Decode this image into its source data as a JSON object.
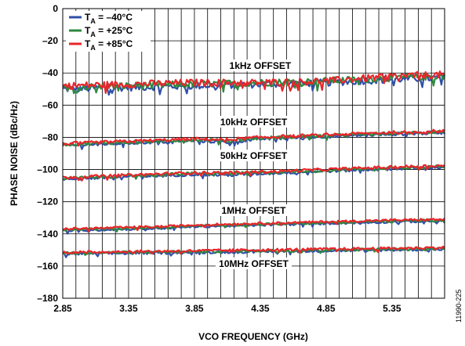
{
  "chart_data": {
    "type": "line",
    "xlabel": "VCO FREQUENCY (GHz)",
    "ylabel": "PHASE NOISE (dBc/Hz)",
    "xlim": [
      2.85,
      5.75
    ],
    "ylim": [
      -180,
      0
    ],
    "x_ticks": [
      "2.85",
      "3.35",
      "3.85",
      "4.35",
      "4.85",
      "5.35"
    ],
    "x_tick_values": [
      2.85,
      3.35,
      3.85,
      4.35,
      4.85,
      5.35
    ],
    "y_ticks": [
      "0",
      "–20",
      "–40",
      "–60",
      "–80",
      "–100",
      "–120",
      "–140",
      "–160",
      "–180"
    ],
    "y_tick_values": [
      0,
      -20,
      -40,
      -60,
      -80,
      -100,
      -120,
      -140,
      -160,
      -180
    ],
    "grid": true,
    "legend_position": "top-left",
    "legend": [
      {
        "prefix": "T",
        "sub": "A",
        "suffix": " = –40°C",
        "color": "#2f4fa8"
      },
      {
        "prefix": "T",
        "sub": "A",
        "suffix": " = +25°C",
        "color": "#2e8a3e"
      },
      {
        "prefix": "T",
        "sub": "A",
        "suffix": " = +85°C",
        "color": "#e8262b"
      }
    ],
    "annotations": [
      {
        "text": "1kHz OFFSET",
        "x": 4.35,
        "y": -37
      },
      {
        "text": "10kHz OFFSET",
        "x": 4.3,
        "y": -72
      },
      {
        "text": "50kHz OFFSET",
        "x": 4.3,
        "y": -93
      },
      {
        "text": "1MHz OFFSET",
        "x": 4.3,
        "y": -127
      },
      {
        "text": "10MHz OFFSET",
        "x": 4.3,
        "y": -160
      }
    ],
    "offsets": [
      "1kHz",
      "10kHz",
      "50kHz",
      "1MHz",
      "10MHz"
    ],
    "series_colors": {
      "-40C": "#2f4fa8",
      "+25C": "#2e8a3e",
      "+85C": "#e8262b"
    },
    "series": [
      {
        "offset": "1kHz",
        "temp": "-40C",
        "x": [
          2.85,
          3.35,
          3.85,
          4.35,
          4.85,
          5.35,
          5.75
        ],
        "y": [
          -50,
          -49,
          -48,
          -47,
          -46,
          -44,
          -43
        ]
      },
      {
        "offset": "1kHz",
        "temp": "+25C",
        "x": [
          2.85,
          3.35,
          3.85,
          4.35,
          4.85,
          5.35,
          5.75
        ],
        "y": [
          -49,
          -48,
          -47,
          -46,
          -45,
          -43,
          -42
        ]
      },
      {
        "offset": "1kHz",
        "temp": "+85C",
        "x": [
          2.85,
          3.35,
          3.85,
          4.35,
          4.85,
          5.35,
          5.75
        ],
        "y": [
          -48,
          -47,
          -46,
          -46,
          -45,
          -42,
          -41
        ]
      },
      {
        "offset": "10kHz",
        "temp": "-40C",
        "x": [
          2.85,
          3.35,
          3.85,
          4.1,
          4.35,
          4.85,
          5.35,
          5.75
        ],
        "y": [
          -85,
          -83.5,
          -82,
          -83,
          -81,
          -79.5,
          -78,
          -77
        ]
      },
      {
        "offset": "10kHz",
        "temp": "+25C",
        "x": [
          2.85,
          3.35,
          3.85,
          4.1,
          4.35,
          4.85,
          5.35,
          5.75
        ],
        "y": [
          -84.5,
          -83,
          -81.5,
          -82,
          -80.5,
          -79,
          -77.5,
          -76.5
        ]
      },
      {
        "offset": "10kHz",
        "temp": "+85C",
        "x": [
          2.85,
          3.35,
          3.85,
          4.1,
          4.35,
          4.85,
          5.35,
          5.75
        ],
        "y": [
          -84,
          -82.5,
          -81,
          -81.5,
          -80,
          -78.5,
          -77,
          -76
        ]
      },
      {
        "offset": "50kHz",
        "temp": "-40C",
        "x": [
          2.85,
          3.35,
          3.85,
          4.1,
          4.35,
          4.85,
          5.35,
          5.75
        ],
        "y": [
          -106,
          -104.5,
          -103,
          -103.5,
          -102.5,
          -101,
          -99.5,
          -98.5
        ]
      },
      {
        "offset": "50kHz",
        "temp": "+25C",
        "x": [
          2.85,
          3.35,
          3.85,
          4.1,
          4.35,
          4.85,
          5.35,
          5.75
        ],
        "y": [
          -105.5,
          -104,
          -102.5,
          -102.5,
          -102,
          -100.5,
          -99,
          -98
        ]
      },
      {
        "offset": "50kHz",
        "temp": "+85C",
        "x": [
          2.85,
          3.35,
          3.85,
          4.1,
          4.35,
          4.85,
          5.35,
          5.75
        ],
        "y": [
          -105,
          -103.5,
          -102,
          -102,
          -101.5,
          -100,
          -98.5,
          -97.5
        ]
      },
      {
        "offset": "1MHz",
        "temp": "-40C",
        "x": [
          2.85,
          3.35,
          3.6,
          3.85,
          4.1,
          4.35,
          4.85,
          5.35,
          5.75
        ],
        "y": [
          -138,
          -137,
          -136.5,
          -135.5,
          -135,
          -134.5,
          -133.5,
          -132.5,
          -132
        ]
      },
      {
        "offset": "1MHz",
        "temp": "+25C",
        "x": [
          2.85,
          3.35,
          3.6,
          3.85,
          4.1,
          4.35,
          4.85,
          5.35,
          5.75
        ],
        "y": [
          -137.5,
          -136.5,
          -136,
          -135,
          -134.5,
          -134,
          -133,
          -132,
          -131.5
        ]
      },
      {
        "offset": "1MHz",
        "temp": "+85C",
        "x": [
          2.85,
          3.35,
          3.6,
          3.85,
          4.1,
          4.35,
          4.85,
          5.35,
          5.75
        ],
        "y": [
          -137,
          -136,
          -135.5,
          -134.5,
          -134,
          -133.5,
          -132.5,
          -131.5,
          -131
        ]
      },
      {
        "offset": "10MHz",
        "temp": "-40C",
        "x": [
          2.85,
          3.35,
          3.85,
          4.35,
          4.85,
          5.35,
          5.75
        ],
        "y": [
          -152.5,
          -152,
          -151.5,
          -151,
          -150.5,
          -150,
          -149.5
        ]
      },
      {
        "offset": "10MHz",
        "temp": "+25C",
        "x": [
          2.85,
          3.35,
          3.85,
          4.35,
          4.85,
          5.35,
          5.75
        ],
        "y": [
          -152,
          -151.5,
          -151,
          -150.5,
          -150,
          -149.5,
          -149
        ]
      },
      {
        "offset": "10MHz",
        "temp": "+85C",
        "x": [
          2.85,
          3.35,
          3.85,
          4.35,
          4.85,
          5.35,
          5.75
        ],
        "y": [
          -151.5,
          -151,
          -150.5,
          -150,
          -149.5,
          -149,
          -148.5
        ]
      }
    ]
  },
  "figure_id": "11990-225"
}
